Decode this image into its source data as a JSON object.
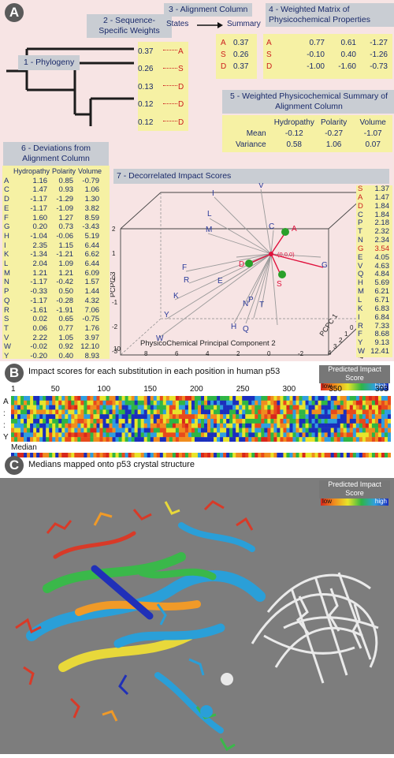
{
  "panel_a": {
    "letter": "A",
    "phylogeny_label": "1 - Phylogeny",
    "seq_weights_title": "2 - Sequence-Specific Weights",
    "weights": [
      "0.37",
      "0.26",
      "0.13",
      "0.12",
      "0.12"
    ],
    "leaf_states": [
      "A",
      "S",
      "D",
      "D",
      "D"
    ],
    "alignment_title": "3 - Alignment Column",
    "states_label": "States",
    "summary_label": "Summary",
    "summary_rows": [
      {
        "aa": "A",
        "val": "0.37"
      },
      {
        "aa": "S",
        "val": "0.26"
      },
      {
        "aa": "D",
        "val": "0.37"
      }
    ],
    "matrix_title": "4 - Weighted Matrix of Physicochemical Properties",
    "matrix_rows": [
      {
        "aa": "A",
        "v1": "0.77",
        "v2": "0.61",
        "v3": "-1.27"
      },
      {
        "aa": "S",
        "v1": "-0.10",
        "v2": "0.40",
        "v3": "-1.26"
      },
      {
        "aa": "D",
        "v1": "-1.00",
        "v2": "-1.60",
        "v3": "-0.73"
      }
    ],
    "summary5_title": "5 - Weighted Physicochemical Summary of Alignment Column",
    "summary5_headers": [
      "Hydropathy",
      "Polarity",
      "Volume"
    ],
    "summary5_rows": [
      {
        "label": "Mean",
        "v1": "-0.12",
        "v2": "-0.27",
        "v3": "-1.07"
      },
      {
        "label": "Variance",
        "v1": "0.58",
        "v2": "1.06",
        "v3": "0.07"
      }
    ],
    "deviations_title": "6 - Deviations from Alignment Column",
    "deviations_headers": [
      "Hydropathy",
      "Polarity",
      "Volume"
    ],
    "deviations": [
      [
        "A",
        "1.16",
        "0.85",
        "-0.79"
      ],
      [
        "C",
        "1.47",
        "0.93",
        "1.06"
      ],
      [
        "D",
        "-1.17",
        "-1.29",
        "1.30"
      ],
      [
        "E",
        "-1.17",
        "-1.09",
        "3.82"
      ],
      [
        "F",
        "1.60",
        "1.27",
        "8.59"
      ],
      [
        "G",
        "0.20",
        "0.73",
        "-3.43"
      ],
      [
        "H",
        "-1.04",
        "-0.06",
        "5.19"
      ],
      [
        "I",
        "2.35",
        "1.15",
        "6.44"
      ],
      [
        "K",
        "-1.34",
        "-1.21",
        "6.62"
      ],
      [
        "L",
        "2.04",
        "1.09",
        "6.44"
      ],
      [
        "M",
        "1.21",
        "1.21",
        "6.09"
      ],
      [
        "N",
        "-1.17",
        "-0.42",
        "1.57"
      ],
      [
        "P",
        "-0.33",
        "0.50",
        "1.44"
      ],
      [
        "Q",
        "-1.17",
        "-0.28",
        "4.32"
      ],
      [
        "R",
        "-1.61",
        "-1.91",
        "7.06"
      ],
      [
        "S",
        "0.02",
        "0.65",
        "-0.75"
      ],
      [
        "T",
        "0.06",
        "0.77",
        "1.76"
      ],
      [
        "V",
        "2.22",
        "1.05",
        "3.97"
      ],
      [
        "W",
        "-0.02",
        "0.92",
        "12.10"
      ],
      [
        "Y",
        "-0.20",
        "0.40",
        "8.93"
      ]
    ],
    "impact_title": "7 - Decorrelated Impact Scores",
    "plot": {
      "z_axis_label": "PCPC 3",
      "x_axis_label": "PhysicoChemical Principal Component 2",
      "y_axis_label": "PCPC 1",
      "origin_label": "(0,0,0)",
      "z_ticks": [
        "2",
        "1",
        "0",
        "-1",
        "-2",
        "-3"
      ],
      "x_ticks": [
        "10",
        "8",
        "6",
        "4",
        "2",
        "0",
        "-2"
      ],
      "y_ticks": [
        "-2",
        "-1",
        "0",
        "1",
        "2",
        "3",
        "4"
      ],
      "bottom_tick": "-4",
      "points": [
        "I",
        "V",
        "L",
        "C",
        "A",
        "F",
        "M",
        "D",
        "R",
        "E",
        "K",
        "G",
        "T",
        "P",
        "N",
        "Y",
        "H",
        "Q",
        "W",
        "S"
      ]
    },
    "impact_scores": [
      [
        "S",
        "1.37",
        true
      ],
      [
        "A",
        "1.47",
        true
      ],
      [
        "D",
        "1.84",
        true
      ],
      [
        "C",
        "1.84",
        false
      ],
      [
        "P",
        "2.18",
        false
      ],
      [
        "T",
        "2.32",
        false
      ],
      [
        "N",
        "2.34",
        false
      ],
      [
        "G",
        "3.54",
        true
      ],
      [
        "E",
        "4.05",
        false
      ],
      [
        "V",
        "4.63",
        false
      ],
      [
        "Q",
        "4.84",
        false
      ],
      [
        "H",
        "5.69",
        false
      ],
      [
        "M",
        "6.21",
        false
      ],
      [
        "L",
        "6.71",
        false
      ],
      [
        "K",
        "6.83",
        false
      ],
      [
        "I",
        "6.84",
        false
      ],
      [
        "R",
        "7.33",
        false
      ],
      [
        "F",
        "8.68",
        false
      ],
      [
        "Y",
        "9.13",
        false
      ],
      [
        "W",
        "12.41",
        false
      ]
    ]
  },
  "panel_b": {
    "letter": "B",
    "title": "Impact scores for each substitution in each position in human p53",
    "legend_title": "Predicted Impact Score",
    "legend_low": "low",
    "legend_high": "high",
    "positions": [
      "1",
      "50",
      "100",
      "150",
      "200",
      "250",
      "300",
      "350",
      "393"
    ],
    "row_labels": [
      "A",
      ":",
      ":",
      "Y"
    ],
    "median_label": "Median"
  },
  "panel_c": {
    "letter": "C",
    "title": "Medians mapped onto p53 crystal structure",
    "legend_title": "Predicted Impact Score",
    "legend_low": "low",
    "legend_high": "high"
  }
}
